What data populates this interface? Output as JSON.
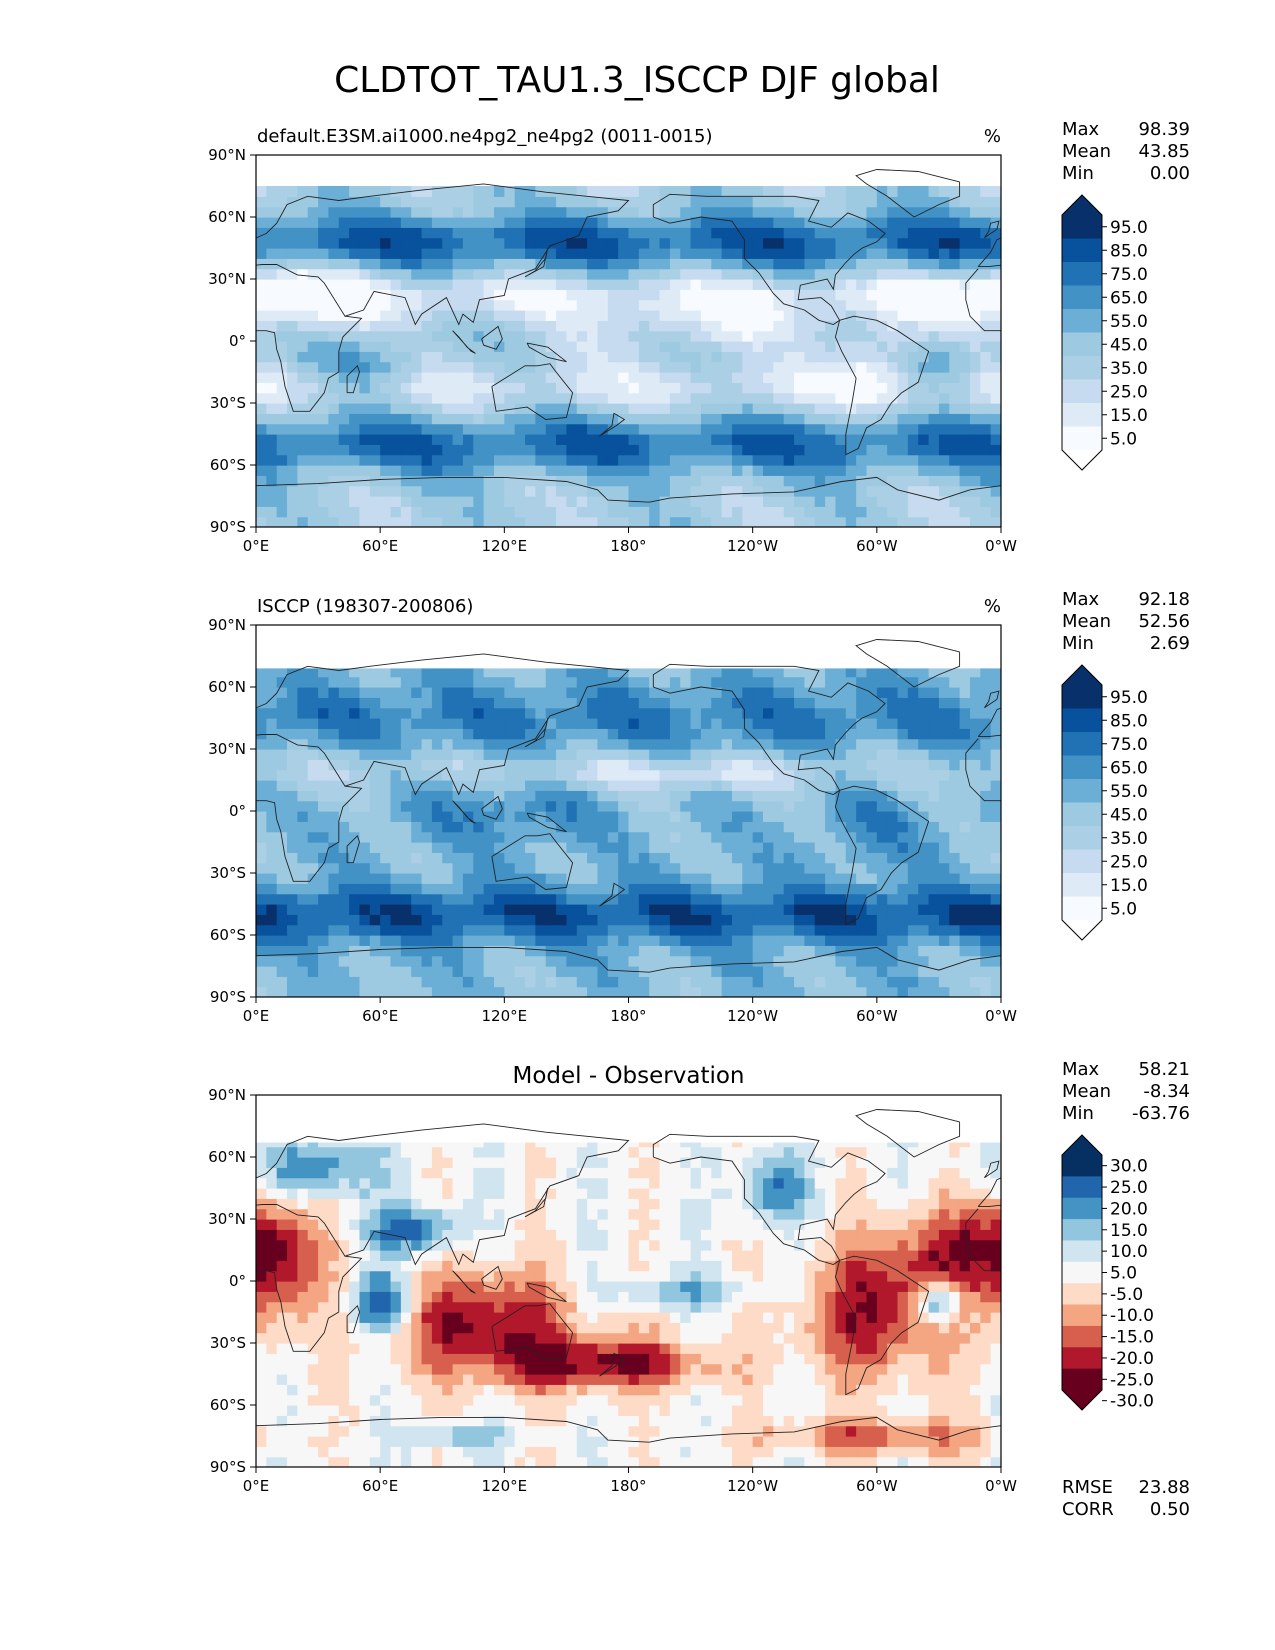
{
  "figure_title": "CLDTOT_TAU1.3_ISCCP DJF global",
  "colors": {
    "seq_levels": [
      "#f7fbff",
      "#deebf7",
      "#c6dbef",
      "#abd0e6",
      "#9ecae1",
      "#6baed6",
      "#4292c6",
      "#2171b5",
      "#08519c",
      "#08306b"
    ],
    "seq_under": "#ffffff",
    "seq_over": "#08306b",
    "div_levels": [
      "#67001f",
      "#b2182b",
      "#d6604d",
      "#f4a582",
      "#fddbc7",
      "#f7f7f7",
      "#d1e5f0",
      "#92c5de",
      "#4393c3",
      "#2166ac",
      "#053061"
    ],
    "div_under": "#67001f",
    "div_over": "#053061",
    "coast": "#222222"
  },
  "chart_data": [
    {
      "type": "heatmap",
      "panel": "model",
      "title": "default.E3SM.ai1000.ne4pg2_ne4pg2 (0011-0015)",
      "units": "%",
      "stats": [
        {
          "label": "Max",
          "value": "98.39"
        },
        {
          "label": "Mean",
          "value": "43.85"
        },
        {
          "label": "Min",
          "value": "0.00"
        }
      ],
      "colorbar_ticks": [
        "95.0",
        "85.0",
        "75.0",
        "65.0",
        "55.0",
        "45.0",
        "35.0",
        "25.0",
        "15.0",
        "5.0"
      ],
      "x_ticks": [
        "0°E",
        "60°E",
        "120°E",
        "180°",
        "120°W",
        "60°W",
        "0°W"
      ],
      "y_ticks": [
        "90°N",
        "60°N",
        "30°N",
        "0°",
        "30°S",
        "60°S",
        "90°S"
      ],
      "lat_coverage": [
        -90,
        75
      ],
      "grid": false
    },
    {
      "type": "heatmap",
      "panel": "observation",
      "title": "ISCCP (198307-200806)",
      "units": "%",
      "stats": [
        {
          "label": "Max",
          "value": "92.18"
        },
        {
          "label": "Mean",
          "value": "52.56"
        },
        {
          "label": "Min",
          "value": "2.69"
        }
      ],
      "colorbar_ticks": [
        "95.0",
        "85.0",
        "75.0",
        "65.0",
        "55.0",
        "45.0",
        "35.0",
        "25.0",
        "15.0",
        "5.0"
      ],
      "x_ticks": [
        "0°E",
        "60°E",
        "120°E",
        "180°",
        "120°W",
        "60°W",
        "0°W"
      ],
      "y_ticks": [
        "90°N",
        "60°N",
        "30°N",
        "0°",
        "30°S",
        "60°S",
        "90°S"
      ],
      "lat_coverage": [
        -90,
        69
      ],
      "grid": false
    },
    {
      "type": "heatmap",
      "panel": "difference",
      "title": "Model - Observation",
      "stats": [
        {
          "label": "Max",
          "value": "58.21"
        },
        {
          "label": "Mean",
          "value": "-8.34"
        },
        {
          "label": "Min",
          "value": "-63.76"
        }
      ],
      "extra_stats": [
        {
          "label": "RMSE",
          "value": "23.88"
        },
        {
          "label": "CORR",
          "value": "0.50"
        }
      ],
      "colorbar_ticks": [
        "30.0",
        "25.0",
        "20.0",
        "15.0",
        "10.0",
        "5.0",
        "-5.0",
        "-10.0",
        "-15.0",
        "-20.0",
        "-25.0",
        "-30.0"
      ],
      "x_ticks": [
        "0°E",
        "60°E",
        "120°E",
        "180°",
        "120°W",
        "60°W",
        "0°W"
      ],
      "y_ticks": [
        "90°N",
        "60°N",
        "30°N",
        "0°",
        "30°S",
        "60°S",
        "90°S"
      ],
      "lat_coverage": [
        -90,
        67
      ],
      "grid": false
    }
  ]
}
